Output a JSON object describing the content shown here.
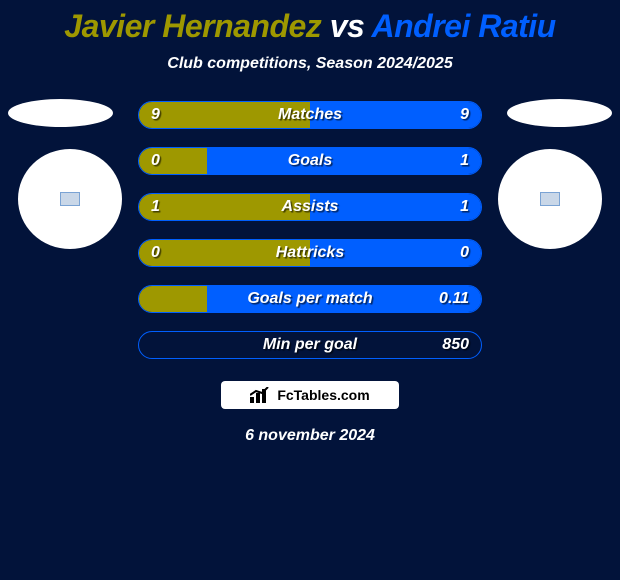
{
  "background_color": "#02133a",
  "title": {
    "player1": "Javier Hernandez",
    "vs": "vs",
    "player2": "Andrei Ratiu",
    "player1_color": "#9e9800",
    "vs_color": "#ffffff",
    "player2_color": "#005fff"
  },
  "subtitle": "Club competitions, Season 2024/2025",
  "left_color": "#9e9800",
  "right_color": "#005fff",
  "circle_color": "#ffffff",
  "flag_border": "#7aa3d4",
  "flag_fill": "#c9d7e8",
  "bars": [
    {
      "label": "Matches",
      "left_val": "9",
      "right_val": "9",
      "left_frac": 0.5,
      "right_frac": 0.5
    },
    {
      "label": "Goals",
      "left_val": "0",
      "right_val": "1",
      "left_frac": 0.2,
      "right_frac": 0.8
    },
    {
      "label": "Assists",
      "left_val": "1",
      "right_val": "1",
      "left_frac": 0.5,
      "right_frac": 0.5
    },
    {
      "label": "Hattricks",
      "left_val": "0",
      "right_val": "0",
      "left_frac": 0.5,
      "right_frac": 0.5
    },
    {
      "label": "Goals per match",
      "left_val": "",
      "right_val": "0.11",
      "left_frac": 0.2,
      "right_frac": 0.8
    },
    {
      "label": "Min per goal",
      "left_val": "",
      "right_val": "850",
      "left_frac": 0.0,
      "right_frac": 0.0
    }
  ],
  "badge_text": "FcTables.com",
  "date": "6 november 2024"
}
